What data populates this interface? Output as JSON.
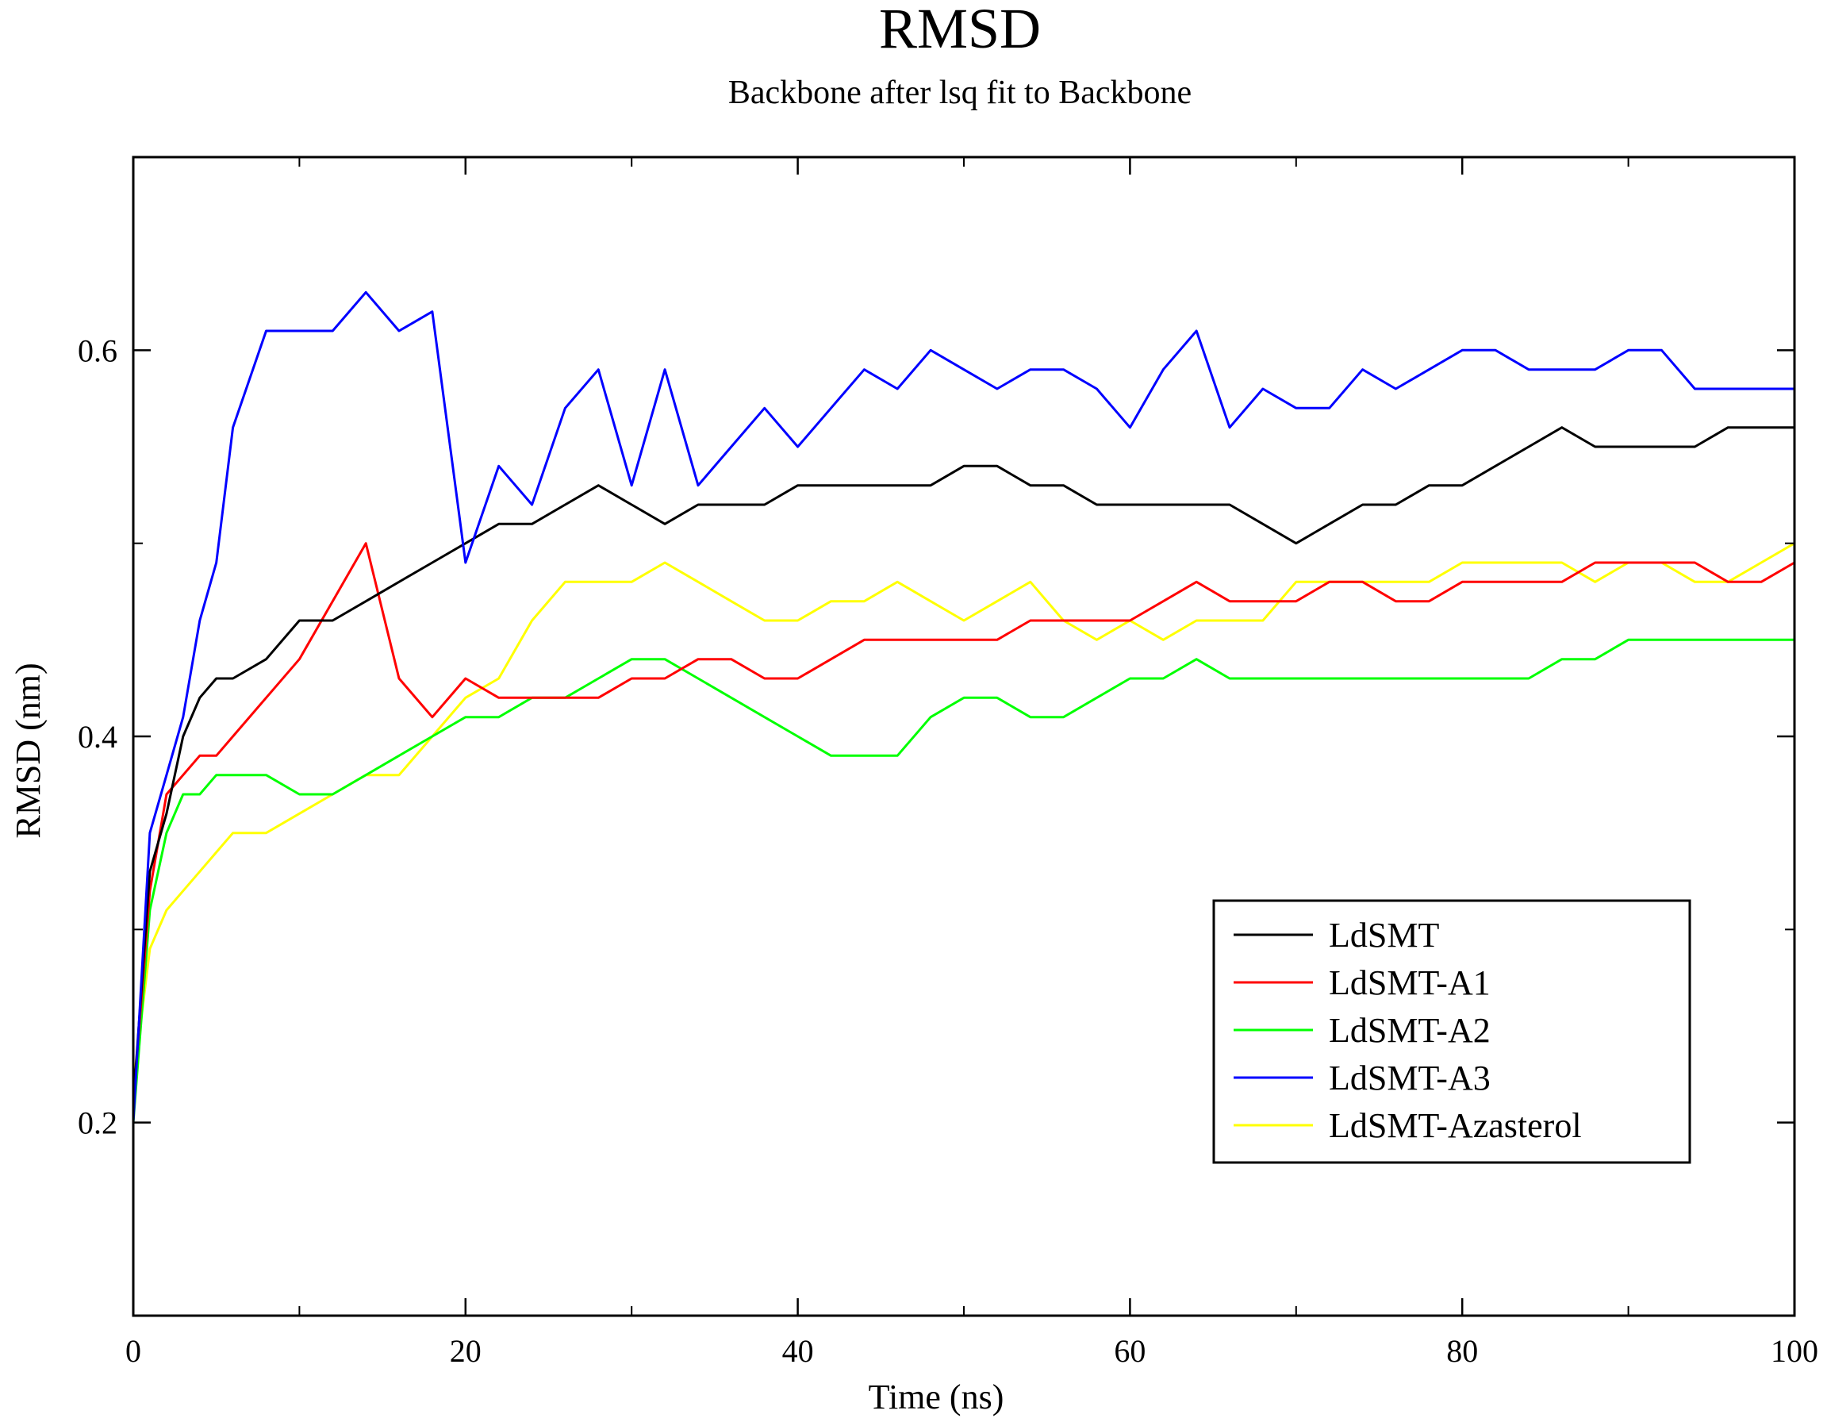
{
  "chart_data": {
    "type": "line",
    "title": "RMSD",
    "subtitle": "Backbone after lsq fit to Backbone",
    "xlabel": "Time (ns)",
    "ylabel": "RMSD (nm)",
    "xlim": [
      0,
      100
    ],
    "ylim": [
      0.1,
      0.7
    ],
    "x_ticks": [
      0,
      20,
      40,
      60,
      80,
      100
    ],
    "x_tick_labels": [
      "0",
      "20",
      "40",
      "60",
      "80",
      "100"
    ],
    "x_minor_ticks": [
      10,
      30,
      50,
      70,
      90
    ],
    "y_ticks": [
      0.2,
      0.4,
      0.6
    ],
    "y_tick_labels": [
      "0.2",
      "0.4",
      "0.6"
    ],
    "y_minor_ticks": [
      0.3,
      0.5
    ],
    "grid": false,
    "legend_position": "bottom-right",
    "x": [
      0,
      1,
      2,
      3,
      4,
      5,
      6,
      8,
      10,
      12,
      14,
      16,
      18,
      20,
      22,
      24,
      26,
      28,
      30,
      32,
      34,
      36,
      38,
      40,
      42,
      44,
      46,
      48,
      50,
      52,
      54,
      56,
      58,
      60,
      62,
      64,
      66,
      68,
      70,
      72,
      74,
      76,
      78,
      80,
      82,
      84,
      86,
      88,
      90,
      92,
      94,
      96,
      98,
      100
    ],
    "series": [
      {
        "name": "LdSMT",
        "color": "#000000",
        "values": [
          0.21,
          0.33,
          0.36,
          0.4,
          0.42,
          0.43,
          0.43,
          0.44,
          0.46,
          0.46,
          0.47,
          0.48,
          0.49,
          0.5,
          0.51,
          0.51,
          0.52,
          0.53,
          0.52,
          0.51,
          0.52,
          0.52,
          0.52,
          0.53,
          0.53,
          0.53,
          0.53,
          0.53,
          0.54,
          0.54,
          0.53,
          0.53,
          0.52,
          0.52,
          0.52,
          0.52,
          0.52,
          0.51,
          0.5,
          0.51,
          0.52,
          0.52,
          0.53,
          0.53,
          0.54,
          0.55,
          0.56,
          0.55,
          0.55,
          0.55,
          0.55,
          0.56,
          0.56,
          0.56
        ]
      },
      {
        "name": "LdSMT-A1",
        "color": "#ff0000",
        "values": [
          0.21,
          0.32,
          0.37,
          0.38,
          0.39,
          0.39,
          0.4,
          0.42,
          0.44,
          0.47,
          0.5,
          0.43,
          0.41,
          0.43,
          0.42,
          0.42,
          0.42,
          0.42,
          0.43,
          0.43,
          0.44,
          0.44,
          0.43,
          0.43,
          0.44,
          0.45,
          0.45,
          0.45,
          0.45,
          0.45,
          0.46,
          0.46,
          0.46,
          0.46,
          0.47,
          0.48,
          0.47,
          0.47,
          0.47,
          0.48,
          0.48,
          0.47,
          0.47,
          0.48,
          0.48,
          0.48,
          0.48,
          0.49,
          0.49,
          0.49,
          0.49,
          0.48,
          0.48,
          0.49
        ]
      },
      {
        "name": "LdSMT-A2",
        "color": "#00ff00",
        "values": [
          0.2,
          0.31,
          0.35,
          0.37,
          0.37,
          0.38,
          0.38,
          0.38,
          0.37,
          0.37,
          0.38,
          0.39,
          0.4,
          0.41,
          0.41,
          0.42,
          0.42,
          0.43,
          0.44,
          0.44,
          0.43,
          0.42,
          0.41,
          0.4,
          0.39,
          0.39,
          0.39,
          0.41,
          0.42,
          0.42,
          0.41,
          0.41,
          0.42,
          0.43,
          0.43,
          0.44,
          0.43,
          0.43,
          0.43,
          0.43,
          0.43,
          0.43,
          0.43,
          0.43,
          0.43,
          0.43,
          0.44,
          0.44,
          0.45,
          0.45,
          0.45,
          0.45,
          0.45,
          0.45
        ]
      },
      {
        "name": "LdSMT-A3",
        "color": "#0000ff",
        "values": [
          0.2,
          0.35,
          0.38,
          0.41,
          0.46,
          0.49,
          0.56,
          0.61,
          0.61,
          0.61,
          0.63,
          0.61,
          0.62,
          0.49,
          0.54,
          0.52,
          0.57,
          0.59,
          0.53,
          0.59,
          0.53,
          0.55,
          0.57,
          0.55,
          0.57,
          0.59,
          0.58,
          0.6,
          0.59,
          0.58,
          0.59,
          0.59,
          0.58,
          0.56,
          0.59,
          0.61,
          0.56,
          0.58,
          0.57,
          0.57,
          0.59,
          0.58,
          0.59,
          0.6,
          0.6,
          0.59,
          0.59,
          0.59,
          0.6,
          0.6,
          0.58,
          0.58,
          0.58,
          0.58
        ]
      },
      {
        "name": "LdSMT-Azasterol",
        "color": "#ffff00",
        "values": [
          0.22,
          0.29,
          0.31,
          0.32,
          0.33,
          0.34,
          0.35,
          0.35,
          0.36,
          0.37,
          0.38,
          0.38,
          0.4,
          0.42,
          0.43,
          0.46,
          0.48,
          0.48,
          0.48,
          0.49,
          0.48,
          0.47,
          0.46,
          0.46,
          0.47,
          0.47,
          0.48,
          0.47,
          0.46,
          0.47,
          0.48,
          0.46,
          0.45,
          0.46,
          0.45,
          0.46,
          0.46,
          0.46,
          0.48,
          0.48,
          0.48,
          0.48,
          0.48,
          0.49,
          0.49,
          0.49,
          0.49,
          0.48,
          0.49,
          0.49,
          0.48,
          0.48,
          0.49,
          0.5
        ]
      }
    ]
  }
}
